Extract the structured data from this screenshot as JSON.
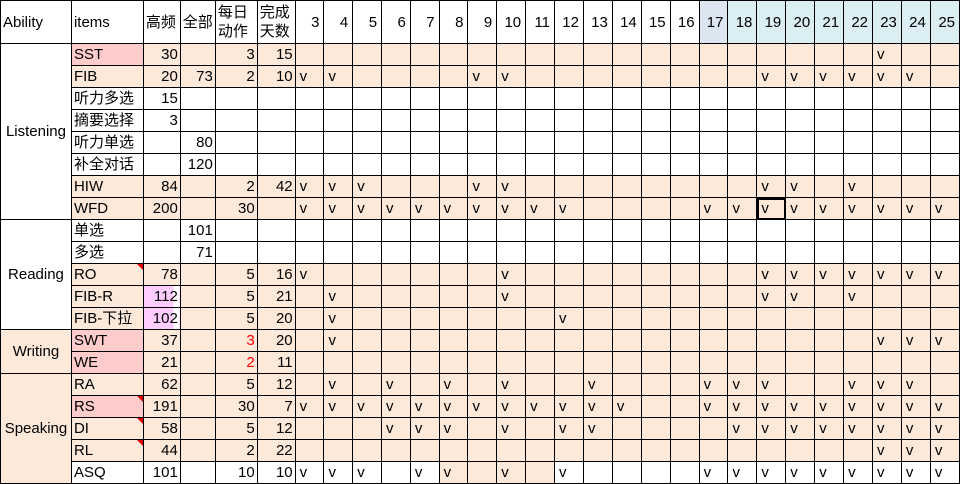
{
  "header": {
    "ability": "Ability",
    "items": "items",
    "high": "高频",
    "all": "全部",
    "daily": [
      "每日",
      "动作"
    ],
    "days_needed": [
      "完成",
      "天数"
    ]
  },
  "days": [
    "3",
    "4",
    "5",
    "6",
    "7",
    "8",
    "9",
    "10",
    "11",
    "12",
    "13",
    "14",
    "15",
    "16",
    "17",
    "18",
    "19",
    "20",
    "21",
    "22",
    "23",
    "24",
    "25"
  ],
  "check_mark": "v",
  "colors": {
    "row_shade": "#fde9d9",
    "item_highlight": "#ffcccc",
    "high_highlight": "#ffccff",
    "header_day17": "#dce6f1",
    "header_day18_25": "#daeef3",
    "red_text": "#ff0000"
  },
  "selected_cell": {
    "item": "WFD",
    "day": "19"
  },
  "groups": [
    {
      "ability": "Listening",
      "shaded": false,
      "rows": [
        {
          "item": "SST",
          "high": "30",
          "all": "",
          "daily": "3",
          "days_needed": "15",
          "shaded": true,
          "item_highlight": true,
          "checks": [
            "23"
          ]
        },
        {
          "item": "FIB",
          "high": "20",
          "all": "73",
          "daily": "2",
          "days_needed": "10",
          "shaded": true,
          "checks": [
            "3",
            "4",
            "9",
            "10",
            "19",
            "20",
            "21",
            "22",
            "23",
            "24"
          ]
        },
        {
          "item": "听力多选",
          "high": "15",
          "all": "",
          "daily": "",
          "days_needed": "",
          "checks": []
        },
        {
          "item": "摘要选择",
          "high": "3",
          "all": "",
          "daily": "",
          "days_needed": "",
          "checks": []
        },
        {
          "item": "听力单选",
          "high": "",
          "all": "80",
          "daily": "",
          "days_needed": "",
          "checks": []
        },
        {
          "item": "补全对话",
          "high": "",
          "all": "120",
          "daily": "",
          "days_needed": "",
          "checks": []
        },
        {
          "item": "HIW",
          "high": "84",
          "all": "",
          "daily": "2",
          "days_needed": "42",
          "shaded": true,
          "checks": [
            "3",
            "4",
            "5",
            "9",
            "10",
            "19",
            "20",
            "22"
          ]
        },
        {
          "item": "WFD",
          "high": "200",
          "all": "",
          "daily": "30",
          "days_needed": "",
          "shaded": true,
          "checks": [
            "3",
            "4",
            "5",
            "6",
            "7",
            "8",
            "9",
            "10",
            "11",
            "12",
            "17",
            "18",
            "19",
            "20",
            "21",
            "22",
            "23",
            "24",
            "25"
          ]
        }
      ]
    },
    {
      "ability": "Reading",
      "shaded": false,
      "rows": [
        {
          "item": "单选",
          "high": "",
          "all": "101",
          "daily": "",
          "days_needed": "",
          "checks": []
        },
        {
          "item": "多选",
          "high": "",
          "all": "71",
          "daily": "",
          "days_needed": "",
          "checks": []
        },
        {
          "item": "RO",
          "high": "78",
          "all": "",
          "daily": "5",
          "days_needed": "16",
          "shaded": true,
          "comment": true,
          "checks": [
            "3",
            "10",
            "19",
            "20",
            "21",
            "22",
            "23",
            "24",
            "25"
          ]
        },
        {
          "item": "FIB-R",
          "high": "112",
          "all": "",
          "daily": "5",
          "days_needed": "21",
          "shaded": true,
          "high_highlight": true,
          "checks": [
            "4",
            "10",
            "19",
            "20",
            "22"
          ]
        },
        {
          "item": "FIB-下拉",
          "high": "102",
          "all": "",
          "daily": "5",
          "days_needed": "20",
          "shaded": true,
          "high_highlight": true,
          "checks": [
            "4",
            "12"
          ]
        }
      ]
    },
    {
      "ability": "Writing",
      "shaded": true,
      "rows": [
        {
          "item": "SWT",
          "high": "37",
          "all": "",
          "daily": "3",
          "days_needed": "20",
          "shaded": true,
          "item_highlight": true,
          "daily_red": true,
          "checks": [
            "4",
            "23",
            "24",
            "25"
          ]
        },
        {
          "item": "WE",
          "high": "21",
          "all": "",
          "daily": "2",
          "days_needed": "11",
          "shaded": true,
          "item_highlight": true,
          "daily_red": true,
          "checks": []
        }
      ]
    },
    {
      "ability": "Speaking",
      "shaded": true,
      "rows": [
        {
          "item": "RA",
          "high": "62",
          "all": "",
          "daily": "5",
          "days_needed": "12",
          "shaded": true,
          "checks": [
            "4",
            "6",
            "8",
            "10",
            "13",
            "17",
            "18",
            "19",
            "22",
            "23",
            "24"
          ]
        },
        {
          "item": "RS",
          "high": "191",
          "all": "",
          "daily": "30",
          "days_needed": "7",
          "shaded": true,
          "item_highlight": true,
          "comment": true,
          "checks": [
            "3",
            "4",
            "5",
            "6",
            "7",
            "8",
            "9",
            "10",
            "11",
            "12",
            "13",
            "14",
            "17",
            "18",
            "19",
            "20",
            "21",
            "22",
            "23",
            "24",
            "25"
          ]
        },
        {
          "item": "DI",
          "high": "58",
          "all": "",
          "daily": "5",
          "days_needed": "12",
          "shaded": true,
          "comment": true,
          "checks": [
            "6",
            "7",
            "8",
            "10",
            "12",
            "13",
            "18",
            "19",
            "20",
            "21",
            "22",
            "23",
            "24",
            "25"
          ]
        },
        {
          "item": "RL",
          "high": "44",
          "all": "",
          "daily": "2",
          "days_needed": "22",
          "shaded": true,
          "comment": true,
          "checks": [
            "23",
            "24",
            "25"
          ]
        },
        {
          "item": "ASQ",
          "high": "101",
          "all": "",
          "daily": "10",
          "days_needed": "10",
          "shaded": false,
          "shaded_days": [
            "8",
            "9",
            "10",
            "11"
          ],
          "checks": [
            "3",
            "4",
            "5",
            "7",
            "8",
            "10",
            "12",
            "17",
            "18",
            "19",
            "20",
            "21",
            "22",
            "23",
            "24",
            "25"
          ]
        }
      ]
    }
  ]
}
